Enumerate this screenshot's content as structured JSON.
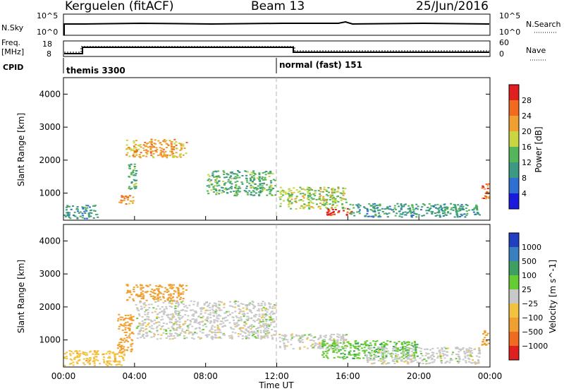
{
  "header": {
    "station": "Kerguelen (fitACF)",
    "beam": "Beam 13",
    "date": "25/Jun/2016"
  },
  "top_panels": {
    "nsky_label": "N.Sky",
    "nsky_ticks": [
      "10^5",
      "10^0"
    ],
    "nsearch_label": "N.Search",
    "nsearch_ticks": [
      "10^5",
      "10^0"
    ],
    "freq_label_1": "Freq.",
    "freq_label_2": "[MHz]",
    "freq_ticks": [
      "18",
      "8"
    ],
    "nave_label": "Nave",
    "nave_ticks": [
      "60",
      "0"
    ],
    "cpid_label": "CPID",
    "cpid_modes": [
      {
        "name": "themis 3300",
        "start_hour": 0
      },
      {
        "name": "normal (fast) 151",
        "start_hour": 12
      }
    ]
  },
  "axes": {
    "y_label": "Slant Range [km]",
    "y_ticks": [
      "1000",
      "2000",
      "3000",
      "4000"
    ],
    "x_ticks": [
      "00:00",
      "04:00",
      "08:00",
      "12:00",
      "16:00",
      "20:00",
      "00:00"
    ],
    "x_label": "Time UT"
  },
  "power_scale": {
    "label": "Power [dB]",
    "ticks": [
      "4",
      "8",
      "12",
      "16",
      "20",
      "24",
      "28"
    ],
    "colors": [
      "#1a1adc",
      "#2f6fd0",
      "#3d9a82",
      "#55b55a",
      "#c8d642",
      "#f0a030",
      "#f06a20",
      "#e02020"
    ]
  },
  "velocity_scale": {
    "label": "Velocity [m s^-1]",
    "ticks": [
      "1000",
      "500",
      "100",
      "25",
      "−25",
      "−100",
      "−500",
      "−1000"
    ],
    "colors": [
      "#2040c0",
      "#3a7fc0",
      "#3ea060",
      "#66cc33",
      "#c8c8c8",
      "#f3c340",
      "#f0a030",
      "#f06a20",
      "#e02020"
    ]
  },
  "chart_data": [
    {
      "type": "heatmap",
      "name": "Power",
      "xlabel": "Time UT",
      "ylabel": "Slant Range [km]",
      "xlim": [
        "00:00",
        "24:00"
      ],
      "ylim": [
        180,
        4500
      ],
      "colorbar": {
        "label": "Power [dB]",
        "range": [
          0,
          30
        ]
      },
      "regions": [
        {
          "t0": 0.0,
          "t1": 2.0,
          "r0": 200,
          "r1": 650,
          "value": 10
        },
        {
          "t0": 3.0,
          "t1": 4.0,
          "r0": 650,
          "r1": 950,
          "value": 22
        },
        {
          "t0": 3.6,
          "t1": 4.2,
          "r0": 1100,
          "r1": 1900,
          "value": 12
        },
        {
          "t0": 3.5,
          "t1": 7.0,
          "r0": 2050,
          "r1": 2650,
          "value": 20
        },
        {
          "t0": 8.0,
          "t1": 12.0,
          "r0": 900,
          "r1": 1700,
          "value": 12
        },
        {
          "t0": 12.0,
          "t1": 16.0,
          "r0": 500,
          "r1": 1200,
          "value": 16
        },
        {
          "t0": 14.7,
          "t1": 16.3,
          "r0": 300,
          "r1": 550,
          "value": 28
        },
        {
          "t0": 16.0,
          "t1": 23.5,
          "r0": 250,
          "r1": 700,
          "value": 10
        },
        {
          "t0": 23.5,
          "t1": 24.0,
          "r0": 800,
          "r1": 1300,
          "value": 24
        }
      ]
    },
    {
      "type": "heatmap",
      "name": "Velocity",
      "xlabel": "Time UT",
      "ylabel": "Slant Range [km]",
      "xlim": [
        "00:00",
        "24:00"
      ],
      "ylim": [
        180,
        4500
      ],
      "colorbar": {
        "label": "Velocity [m s^-1]",
        "range": [
          -1000,
          1000
        ]
      },
      "regions": [
        {
          "t0": 0.0,
          "t1": 3.5,
          "r0": 200,
          "r1": 700,
          "value": -75
        },
        {
          "t0": 3.0,
          "t1": 4.0,
          "r0": 600,
          "r1": 1800,
          "value": -150
        },
        {
          "t0": 3.5,
          "t1": 7.0,
          "r0": 2150,
          "r1": 2700,
          "value": -300
        },
        {
          "t0": 4.0,
          "t1": 12.0,
          "r0": 1000,
          "r1": 2200,
          "value": 0
        },
        {
          "t0": 12.0,
          "t1": 16.0,
          "r0": 700,
          "r1": 1200,
          "value": 0
        },
        {
          "t0": 14.5,
          "t1": 20.0,
          "r0": 400,
          "r1": 1000,
          "value": 80
        },
        {
          "t0": 17.0,
          "t1": 23.5,
          "r0": 250,
          "r1": 800,
          "value": 0
        },
        {
          "t0": 23.5,
          "t1": 24.0,
          "r0": 800,
          "r1": 1300,
          "value": -150
        }
      ]
    }
  ]
}
